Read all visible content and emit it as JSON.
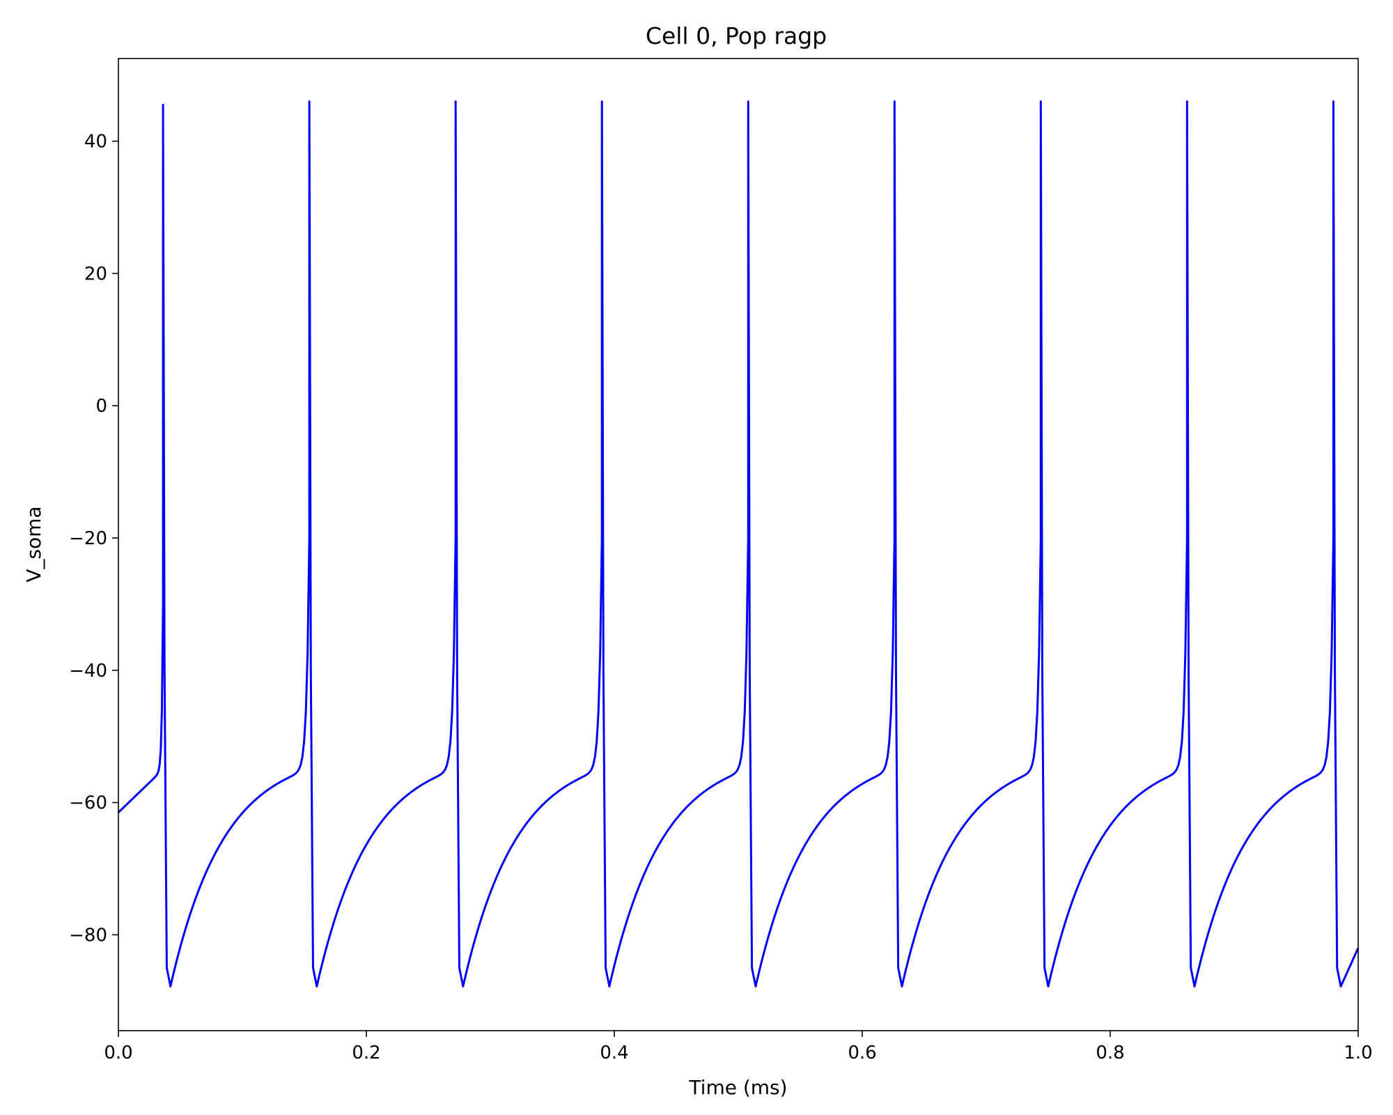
{
  "chart_data": {
    "type": "line",
    "title": "Cell 0, Pop ragp",
    "xlabel": "Time (ms)",
    "ylabel": "V_soma",
    "xlim": [
      0.0,
      1.0
    ],
    "ylim": [
      -94.5,
      52.5
    ],
    "x_ticks": [
      0.0,
      0.2,
      0.4,
      0.6,
      0.8,
      1.0
    ],
    "x_tick_labels": [
      "0.0",
      "0.2",
      "0.4",
      "0.6",
      "0.8",
      "1.0"
    ],
    "y_ticks": [
      -80,
      -60,
      -40,
      -20,
      0,
      20,
      40
    ],
    "y_tick_labels": [
      "−80",
      "−60",
      "−40",
      "−20",
      "0",
      "20",
      "40"
    ],
    "grid": false,
    "series": [
      {
        "color": "#0000ff",
        "resting_start_mV": -61.5,
        "spike_times_ms": [
          0.036,
          0.154,
          0.272,
          0.39,
          0.508,
          0.626,
          0.744,
          0.862,
          0.98
        ],
        "peak_mV": [
          45.5,
          46.0,
          46.0,
          46.0,
          46.0,
          46.0,
          46.0,
          46.0,
          46.0
        ],
        "trough_mV": -87.8,
        "threshold_mV": -55.0,
        "end_mV": -82.0
      }
    ]
  }
}
